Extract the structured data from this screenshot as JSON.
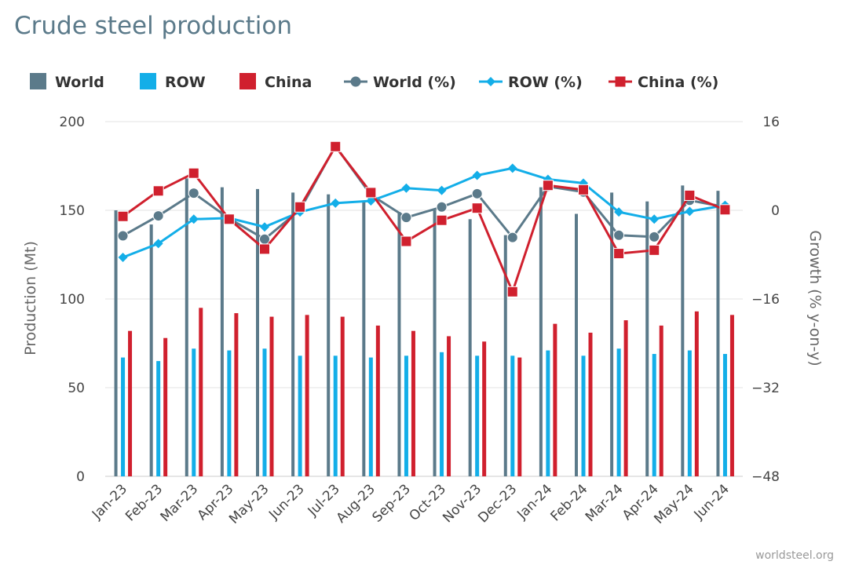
{
  "chart_data": {
    "type": "bar",
    "title": "Crude steel production",
    "ylabel": "Production (Mt)",
    "y2label": "Growth (% y-on-y)",
    "ylim": [
      0,
      200
    ],
    "y2lim": [
      -48,
      16
    ],
    "yticks": [
      "0",
      "50",
      "100",
      "150",
      "200"
    ],
    "y2ticks": [
      "−48",
      "−32",
      "−16",
      "0",
      "16"
    ],
    "categories": [
      "Jan-23",
      "Feb-23",
      "Mar-23",
      "Apr-23",
      "May-23",
      "Jun-23",
      "Jul-23",
      "Aug-23",
      "Sep-23",
      "Oct-23",
      "Nov-23",
      "Dec-23",
      "Jan-24",
      "Feb-24",
      "Mar-24",
      "Apr-24",
      "May-24",
      "Jun-24"
    ],
    "bar_series": [
      {
        "name": "World",
        "color": "#5b7a8a",
        "values": [
          150,
          142,
          168,
          163,
          162,
          160,
          159,
          155,
          149,
          150,
          145,
          136,
          163,
          148,
          160,
          155,
          164,
          161
        ]
      },
      {
        "name": "ROW",
        "color": "#13aee8",
        "values": [
          67,
          65,
          72,
          71,
          72,
          68,
          68,
          67,
          68,
          70,
          68,
          68,
          71,
          68,
          72,
          69,
          71,
          69
        ]
      },
      {
        "name": "China",
        "color": "#d0202e",
        "values": [
          82,
          78,
          95,
          92,
          90,
          91,
          90,
          85,
          82,
          79,
          76,
          67,
          86,
          81,
          88,
          85,
          93,
          91
        ]
      }
    ],
    "line_series": [
      {
        "name": "World (%)",
        "color": "#5b7a8a",
        "marker": "circle",
        "values": [
          -4.6,
          -1.0,
          3.1,
          -1.5,
          -5.2,
          0.1,
          11.6,
          2.8,
          -1.3,
          0.6,
          3.0,
          -4.9,
          4.3,
          3.3,
          -4.5,
          -4.8,
          1.8,
          0.6
        ]
      },
      {
        "name": "ROW (%)",
        "color": "#13aee8",
        "marker": "diamond",
        "values": [
          -8.5,
          -6.0,
          -1.6,
          -1.4,
          -3.0,
          -0.3,
          1.3,
          1.7,
          4.0,
          3.6,
          6.3,
          7.6,
          5.6,
          4.9,
          -0.3,
          -1.6,
          -0.2,
          0.9
        ]
      },
      {
        "name": "China (%)",
        "color": "#d0202e",
        "marker": "square",
        "values": [
          -1.1,
          3.5,
          6.7,
          -1.6,
          -7.0,
          0.6,
          11.5,
          3.2,
          -5.6,
          -1.8,
          0.4,
          -14.7,
          4.5,
          3.7,
          -7.8,
          -7.2,
          2.7,
          0.1
        ]
      }
    ],
    "legend_position": "top-left",
    "grid": true,
    "credit": "worldsteel.org"
  }
}
